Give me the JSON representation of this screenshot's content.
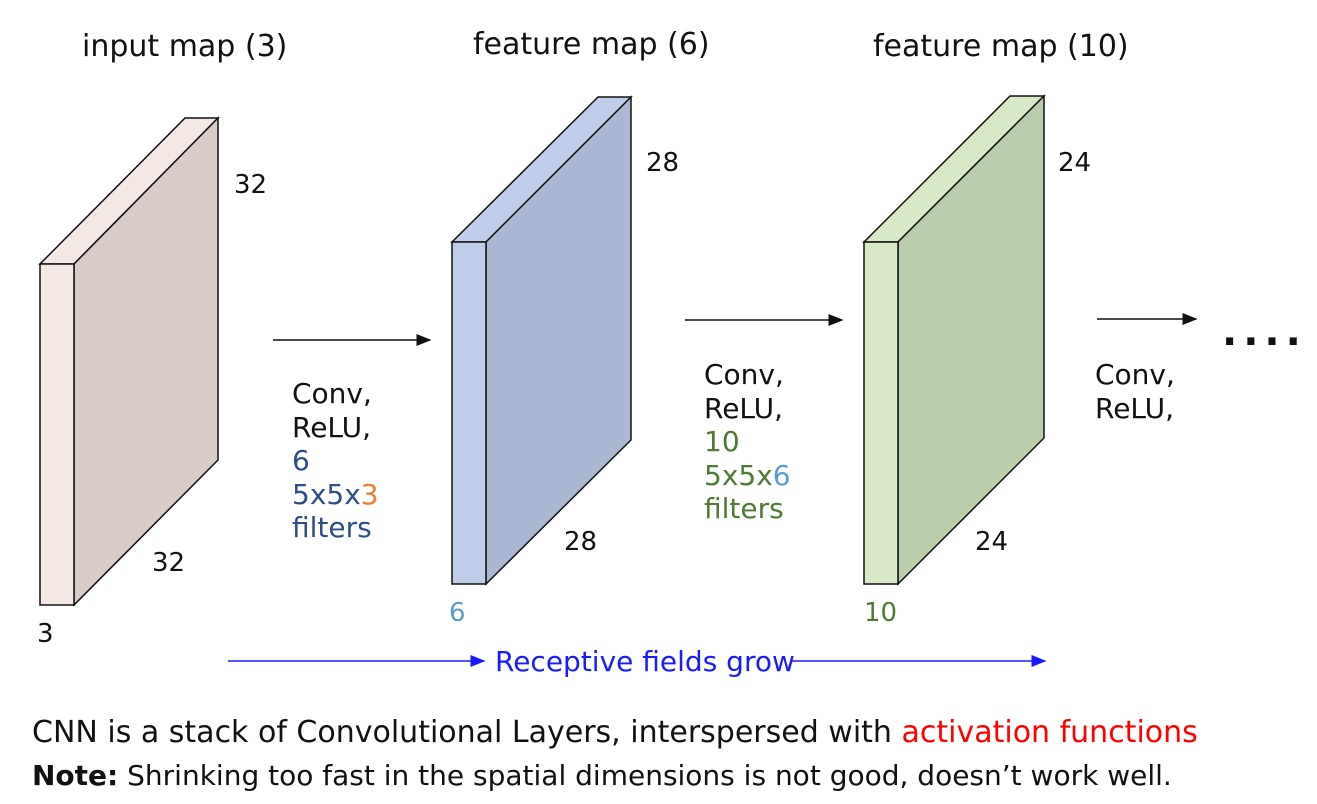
{
  "colors": {
    "input_front": "#d9cbc8",
    "input_side": "#f4e8e4",
    "map6_front": "#aab8d3",
    "map6_side": "#bfcdea",
    "map10_front": "#b9cdab",
    "map10_side": "#d6e8c4",
    "blue_text": "#2d4f86",
    "orange_text": "#ed7d31",
    "light_blue_text": "#5b9bd5",
    "green_text": "#4e7a34",
    "receptive_blue": "#1a1aff",
    "red_text": "#ff0000"
  },
  "layers": [
    {
      "title": "input map (3)",
      "height": "32",
      "width": "32",
      "depth": "3"
    },
    {
      "title": "feature map (6)",
      "height": "28",
      "width": "28",
      "depth": "6"
    },
    {
      "title": "feature map (10)",
      "height": "24",
      "width": "24",
      "depth": "10"
    }
  ],
  "conv1": {
    "line1": "Conv,",
    "line2": "ReLU,",
    "count": "6",
    "dims_prefix": "5x5x",
    "dims_depth": "3",
    "filters": "filters"
  },
  "conv2": {
    "line1": "Conv,",
    "line2": "ReLU,",
    "count": "10",
    "dims_prefix": "5x5x",
    "dims_depth": "6",
    "filters": "filters"
  },
  "conv3": {
    "line1": "Conv,",
    "line2": "ReLU,"
  },
  "ellipsis": "....",
  "receptive": "Receptive fields grow",
  "caption": {
    "line1_main": "CNN is a stack of Convolutional Layers, interspersed with ",
    "line1_red": "activation functions",
    "line2_bold": "Note:",
    "line2_rest": " Shrinking too fast in the spatial dimensions is not good, doesn’t work well."
  }
}
